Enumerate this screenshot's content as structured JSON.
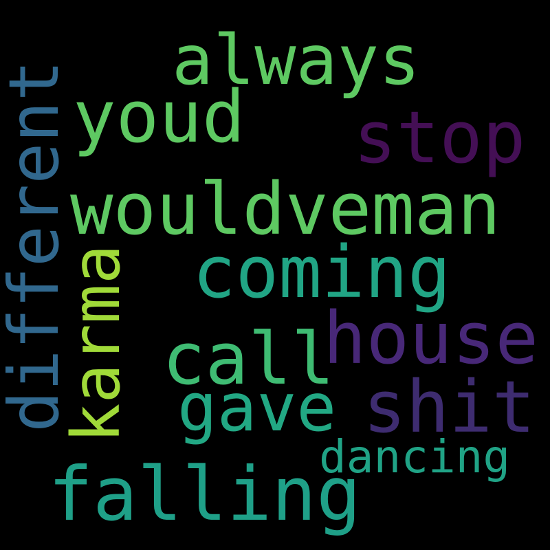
{
  "background": "#000000",
  "words": [
    {
      "key": "always",
      "text": "always",
      "color": "#5ec962"
    },
    {
      "key": "youd",
      "text": "youd",
      "color": "#5ec962"
    },
    {
      "key": "stop",
      "text": "stop",
      "color": "#440f55"
    },
    {
      "key": "wouldveman",
      "text": "wouldveman",
      "color": "#5ec962"
    },
    {
      "key": "coming",
      "text": "coming",
      "color": "#21a585"
    },
    {
      "key": "call",
      "text": "call",
      "color": "#3fbc73"
    },
    {
      "key": "house",
      "text": "house",
      "color": "#482878"
    },
    {
      "key": "gave",
      "text": "gave",
      "color": "#22a884"
    },
    {
      "key": "shit",
      "text": "shit",
      "color": "#3e2c70"
    },
    {
      "key": "dancing",
      "text": "dancing",
      "color": "#20a386"
    },
    {
      "key": "falling",
      "text": "falling",
      "color": "#1fa088"
    },
    {
      "key": "different",
      "text": "different",
      "color": "#31688e"
    },
    {
      "key": "karma",
      "text": "karma",
      "color": "#a0da39"
    }
  ]
}
